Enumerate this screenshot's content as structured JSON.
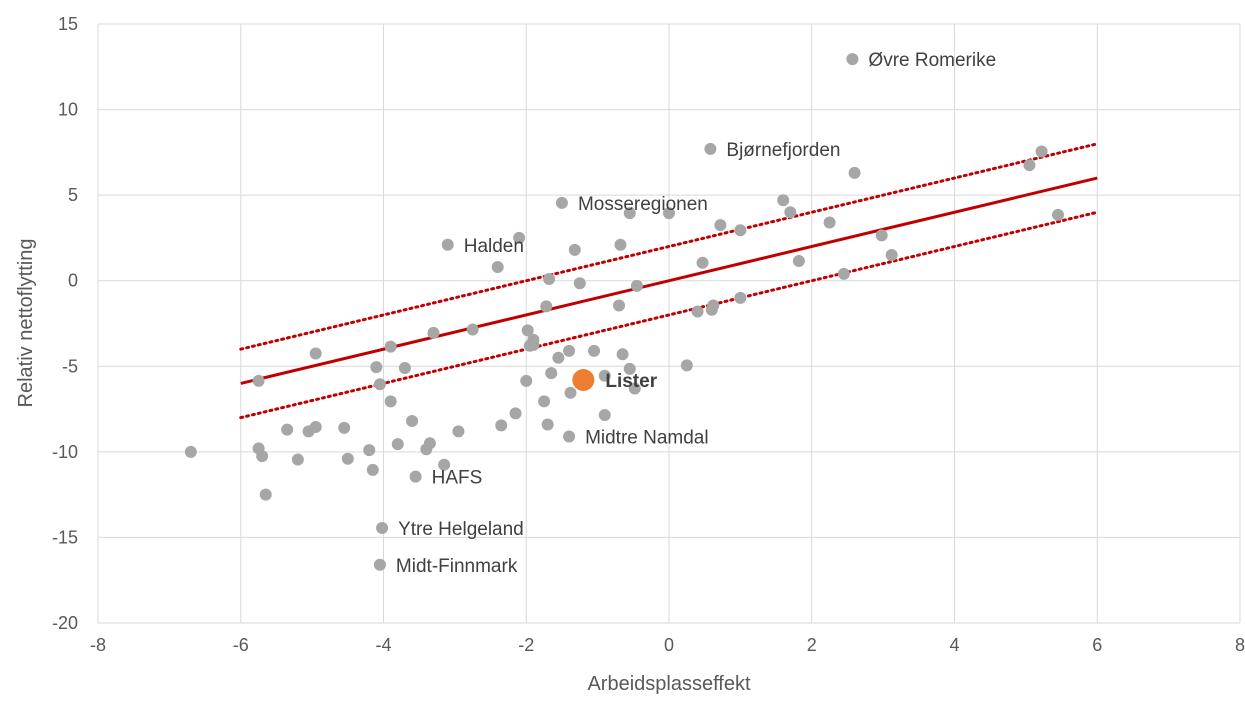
{
  "chart_data": {
    "type": "scatter",
    "xlabel": "Arbeidsplasseffekt",
    "ylabel": "Relativ nettoflytting",
    "xlim": [
      -8,
      8
    ],
    "ylim": [
      -20,
      15
    ],
    "xticks": [
      -8,
      -6,
      -4,
      -2,
      0,
      2,
      4,
      6,
      8
    ],
    "yticks": [
      -20,
      -15,
      -10,
      -5,
      0,
      5,
      10,
      15
    ],
    "grid": true,
    "colors": {
      "point": "#a6a6a6",
      "highlight": "#ed7d31",
      "trend": "#c00000",
      "grid": "#d9d9d9",
      "text": "#595959"
    },
    "series": [
      {
        "points": [
          [
            -6.7,
            -10.0
          ],
          [
            -5.75,
            -5.85
          ],
          [
            -5.75,
            -9.8
          ],
          [
            -5.7,
            -10.25
          ],
          [
            -5.65,
            -12.5
          ],
          [
            -5.35,
            -8.7
          ],
          [
            -5.2,
            -10.45
          ],
          [
            -5.05,
            -8.8
          ],
          [
            -4.95,
            -4.25
          ],
          [
            -4.95,
            -8.55
          ],
          [
            -4.55,
            -8.6
          ],
          [
            -4.5,
            -10.4
          ],
          [
            -4.2,
            -9.9
          ],
          [
            -4.15,
            -11.05
          ],
          [
            -4.1,
            -5.05
          ],
          [
            -4.05,
            -6.05
          ],
          [
            -3.9,
            -3.85
          ],
          [
            -3.9,
            -7.05
          ],
          [
            -3.8,
            -9.55
          ],
          [
            -3.7,
            -5.1
          ],
          [
            -3.6,
            -8.2
          ],
          [
            -3.4,
            -9.85
          ],
          [
            -3.35,
            -9.5
          ],
          [
            -3.3,
            -3.05
          ],
          [
            -3.15,
            -10.75
          ],
          [
            -2.95,
            -8.8
          ],
          [
            -2.75,
            -2.85
          ],
          [
            -2.35,
            -8.45
          ],
          [
            -2.15,
            -7.75
          ],
          [
            -2.1,
            2.5
          ],
          [
            -2.0,
            -5.85
          ],
          [
            -1.98,
            -2.9
          ],
          [
            -1.95,
            -3.8
          ],
          [
            -1.9,
            -3.45
          ],
          [
            -1.9,
            -3.75
          ],
          [
            -1.75,
            -7.05
          ],
          [
            -1.72,
            -1.5
          ],
          [
            -1.7,
            -8.4
          ],
          [
            -1.68,
            0.1
          ],
          [
            -1.65,
            -5.4
          ],
          [
            -1.55,
            -4.5
          ],
          [
            -1.4,
            -4.1
          ],
          [
            -1.38,
            -6.55
          ],
          [
            -1.32,
            1.8
          ],
          [
            -1.25,
            -0.15
          ],
          [
            -1.05,
            -4.1
          ],
          [
            -0.9,
            -5.55
          ],
          [
            -0.9,
            -7.85
          ],
          [
            -0.7,
            -1.45
          ],
          [
            -0.68,
            2.1
          ],
          [
            -0.65,
            -4.3
          ],
          [
            -0.55,
            3.95
          ],
          [
            -0.55,
            -5.15
          ],
          [
            -0.48,
            -6.3
          ],
          [
            -0.45,
            -0.3
          ],
          [
            0.0,
            3.95
          ],
          [
            0.25,
            -4.95
          ],
          [
            0.4,
            -1.8
          ],
          [
            0.47,
            1.05
          ],
          [
            0.6,
            -1.7
          ],
          [
            0.62,
            -1.45
          ],
          [
            0.72,
            3.25
          ],
          [
            1.0,
            2.95
          ],
          [
            1.0,
            -1.0
          ],
          [
            1.6,
            4.7
          ],
          [
            1.7,
            4.0
          ],
          [
            1.82,
            1.15
          ],
          [
            2.25,
            3.4
          ],
          [
            2.45,
            0.4
          ],
          [
            2.6,
            6.3
          ],
          [
            2.98,
            2.65
          ],
          [
            3.12,
            1.5
          ],
          [
            5.05,
            6.75
          ],
          [
            5.22,
            7.55
          ],
          [
            5.45,
            3.85
          ]
        ]
      },
      {
        "points": [
          [
            2.57,
            12.95
          ],
          [
            0.58,
            7.7
          ],
          [
            -1.5,
            4.55
          ],
          [
            -3.1,
            2.1
          ],
          [
            -2.4,
            0.8
          ],
          [
            -1.4,
            -9.1
          ],
          [
            -3.55,
            -11.45
          ],
          [
            -4.02,
            -14.45
          ],
          [
            -4.05,
            -16.6
          ]
        ],
        "labels": [
          "Øvre Romerike",
          "Bjørnefjorden",
          "Mosseregionen",
          "Halden",
          "",
          "Midtre Namdal",
          "HAFS",
          "Ytre Helgeland",
          "Midt-Finnmark"
        ]
      },
      {
        "points": [
          [
            -1.2,
            -5.8
          ]
        ],
        "labels": [
          "Lister"
        ]
      }
    ],
    "trend": {
      "line": [
        [
          -6,
          -6.0
        ],
        [
          6,
          6.0
        ]
      ],
      "upper": [
        [
          -6,
          -4.0
        ],
        [
          6,
          8.0
        ]
      ],
      "lower": [
        [
          -6,
          -8.0
        ],
        [
          6,
          4.0
        ]
      ]
    }
  }
}
